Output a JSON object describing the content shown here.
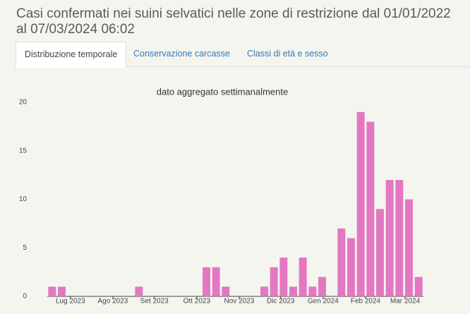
{
  "header": {
    "title": "Casi confermati nei suini selvatici nelle zone di restrizione dal 01/01/2022 al 07/03/2024 06:02"
  },
  "tabs": [
    "Distribuzione temporale",
    "Conservazione carcasse",
    "Classi di età e sesso"
  ],
  "chart_data": {
    "type": "bar",
    "title": "dato aggregato settimanalmente",
    "categories": [
      null,
      null,
      null,
      null,
      null,
      null,
      null,
      null,
      null,
      null,
      null,
      null,
      null,
      null,
      null,
      null,
      null,
      null,
      null,
      null,
      null,
      null,
      null,
      null,
      null,
      null,
      null,
      null,
      null,
      null,
      null,
      null,
      null,
      null,
      null,
      null,
      null,
      null,
      null
    ],
    "values": [
      1,
      1,
      0,
      0,
      0,
      0,
      0,
      0,
      0,
      1,
      0,
      0,
      0,
      0,
      0,
      0,
      3,
      3,
      1,
      0,
      0,
      0,
      1,
      3,
      4,
      1,
      4,
      1,
      2,
      0,
      7,
      6,
      19,
      18,
      9,
      12,
      12,
      10,
      2
    ],
    "color": "#e377c2",
    "ylim": [
      0,
      20
    ],
    "yticks": [
      0,
      5,
      10,
      15,
      20
    ],
    "xticks": [
      {
        "value": 1.9,
        "label": "Lug 2023"
      },
      {
        "value": 6.3,
        "label": "Ago 2023"
      },
      {
        "value": 10.6,
        "label": "Set 2023"
      },
      {
        "value": 15.0,
        "label": "Ott 2023"
      },
      {
        "value": 19.4,
        "label": "Nov 2023"
      },
      {
        "value": 23.7,
        "label": "Dic 2023"
      },
      {
        "value": 28.1,
        "label": "Gen 2024"
      },
      {
        "value": 32.5,
        "label": "Feb 2024"
      },
      {
        "value": 36.6,
        "label": "Mar 2024"
      }
    ],
    "grid": false
  }
}
